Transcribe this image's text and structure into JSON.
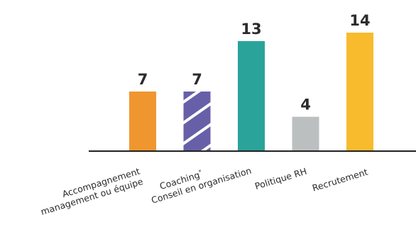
{
  "chart_data": {
    "type": "bar",
    "categories": [
      [
        "Accompagnement",
        "management ou équipe"
      ],
      [
        "Coaching*"
      ],
      [
        "Conseil en organisation"
      ],
      [
        "Politique RH"
      ],
      [
        "Recrutement"
      ]
    ],
    "values": [
      7,
      7,
      13,
      4,
      14
    ],
    "colors": [
      "#f0962f",
      "#6760a8",
      "#2aa39a",
      "#bbbfbf",
      "#f7bb2d"
    ],
    "patterns": [
      "solid",
      "diagonal-stripes",
      "solid",
      "solid",
      "solid"
    ],
    "title": "",
    "xlabel": "",
    "ylabel": "",
    "ylim": [
      0,
      14
    ],
    "grid": false,
    "legend": "none"
  }
}
